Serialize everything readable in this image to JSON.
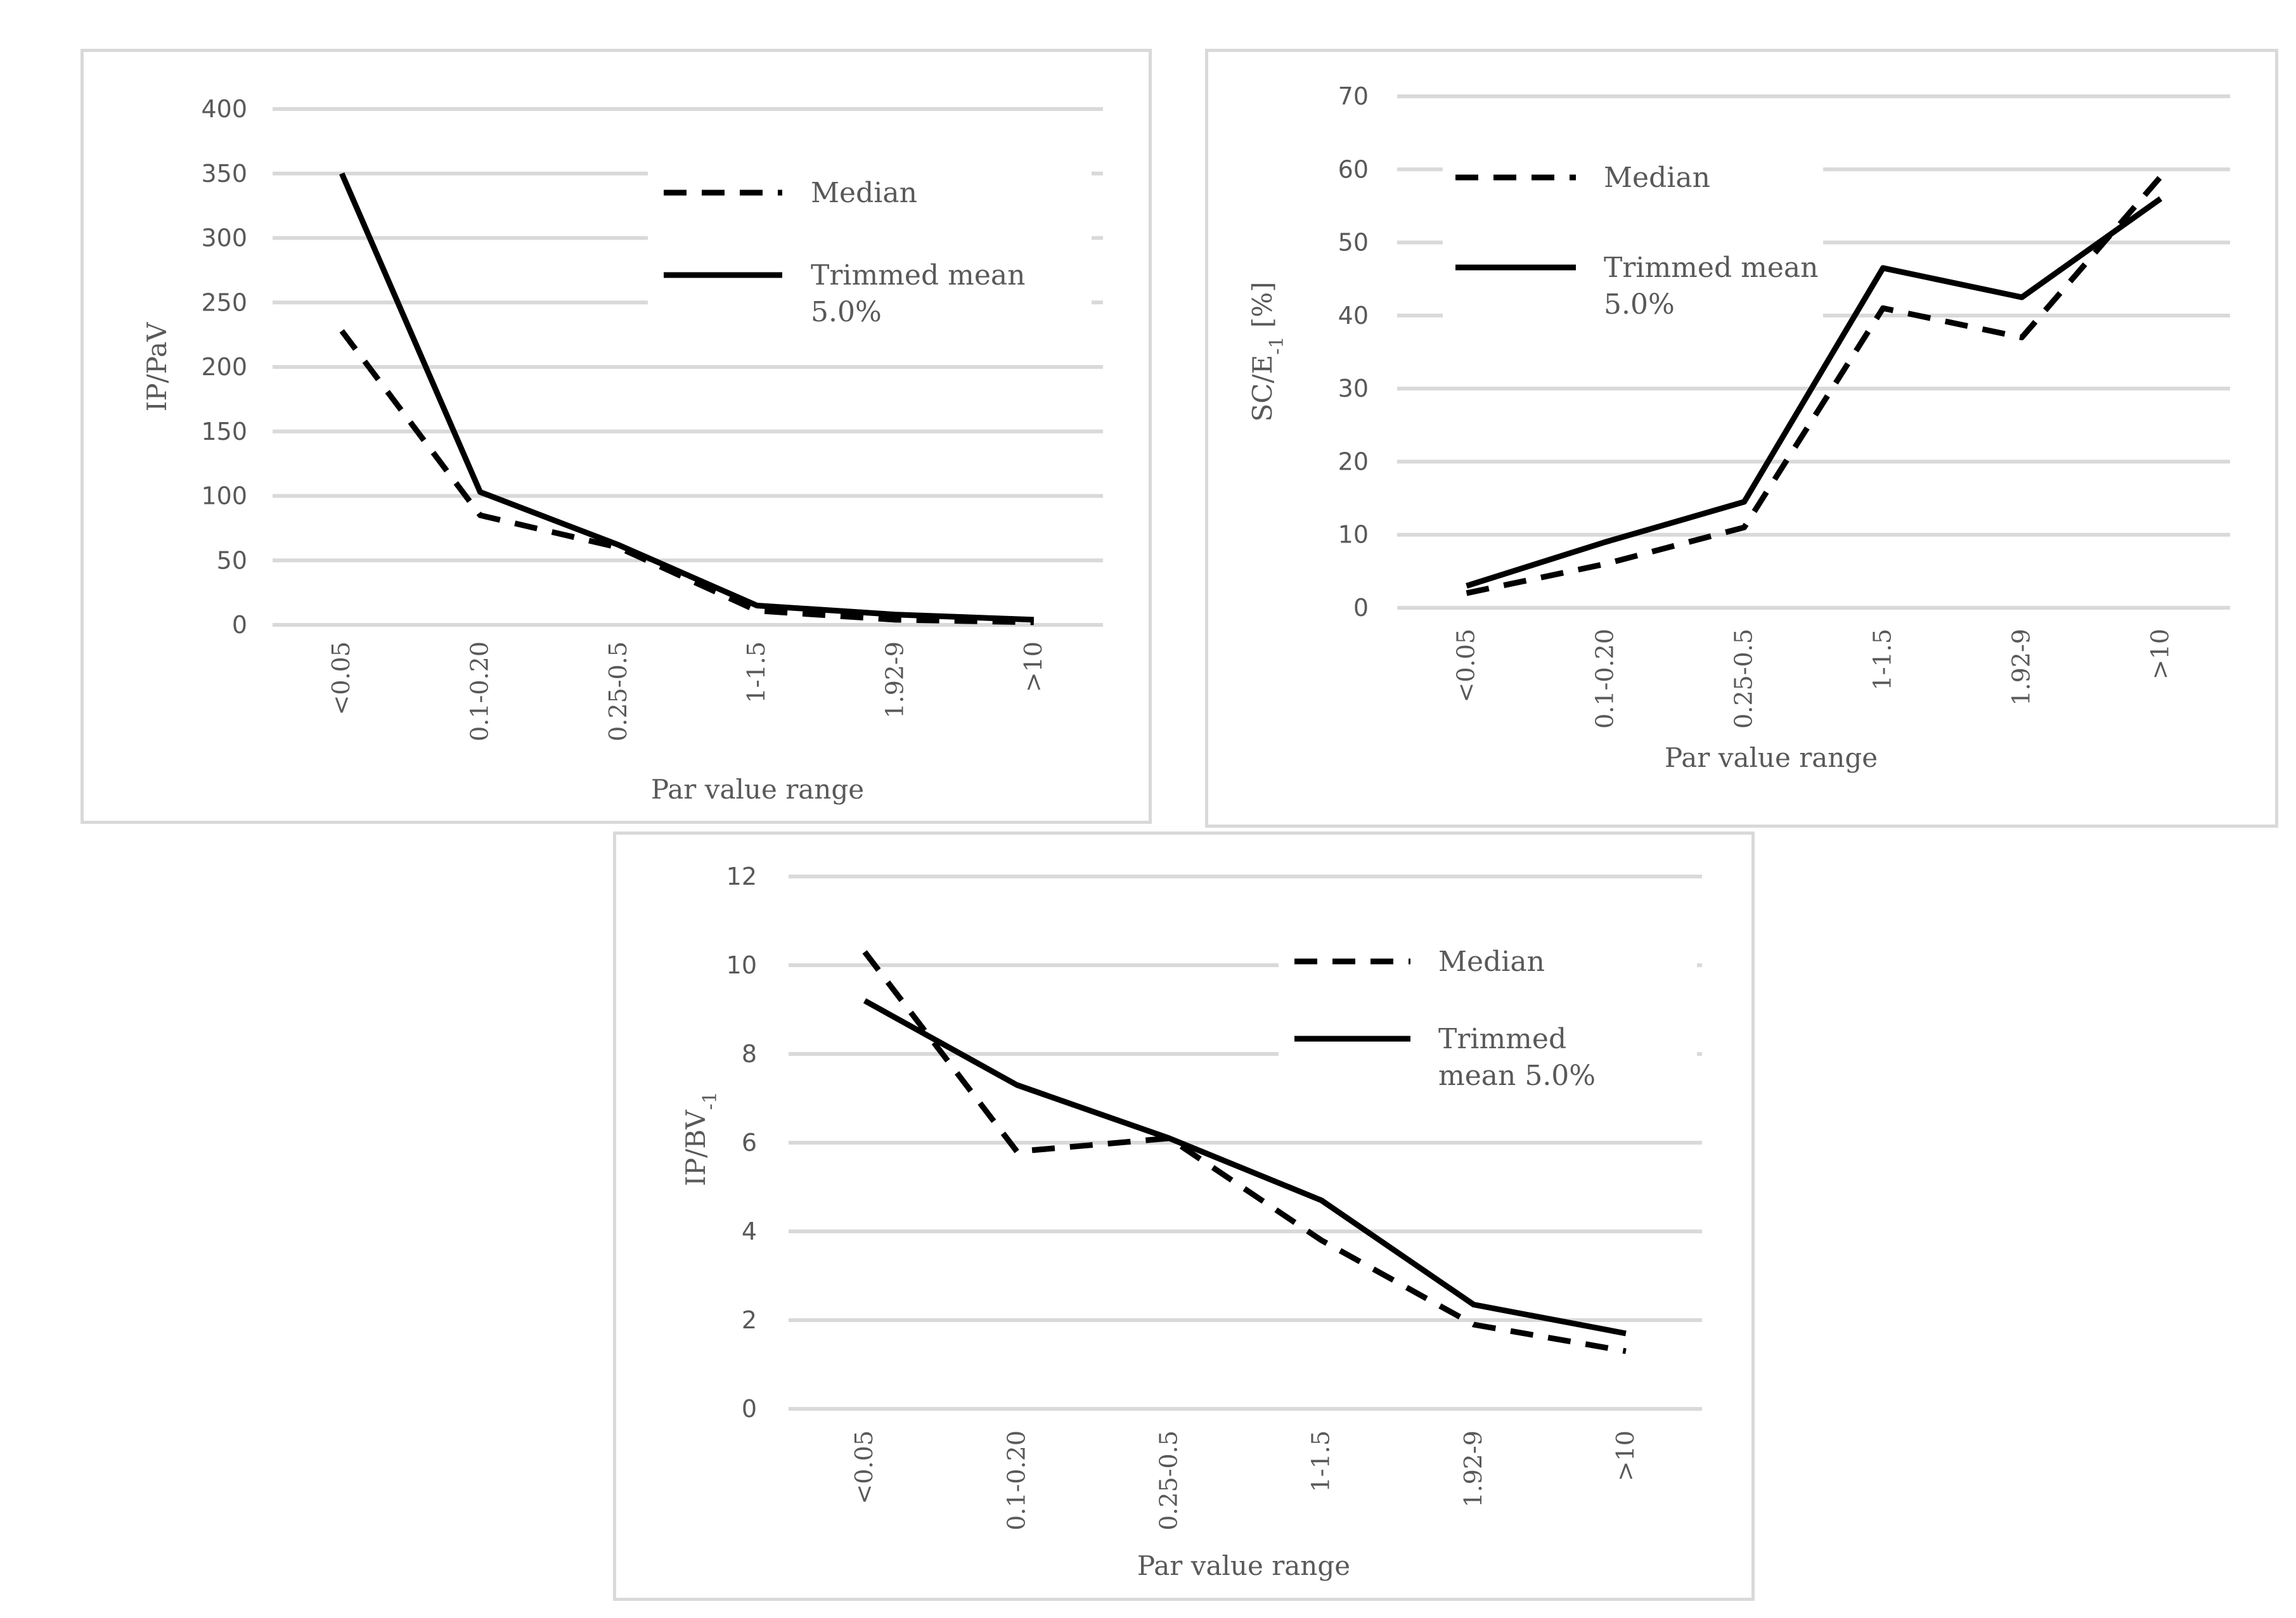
{
  "chart_data": [
    {
      "type": "line",
      "title": "",
      "xlabel": "Par value range",
      "ylabel": "IP/PaV",
      "ylim": [
        0,
        400
      ],
      "yticks": [
        0,
        50,
        100,
        150,
        200,
        250,
        300,
        350,
        400
      ],
      "categories": [
        "<0.05",
        "0.1-0.20",
        "0.25-0.5",
        "1-1.5",
        "1.92-9",
        ">10"
      ],
      "series": [
        {
          "name": "Median",
          "style": "dashed",
          "values": [
            228,
            85,
            60,
            11,
            4,
            2
          ]
        },
        {
          "name": "Trimmed mean 5.0%",
          "style": "solid",
          "values": [
            350,
            103,
            62,
            15,
            8,
            4
          ]
        }
      ],
      "legend_labels": [
        [
          "Median"
        ],
        [
          "Trimmed mean",
          "5.0%"
        ]
      ],
      "legend": "top-right"
    },
    {
      "type": "line",
      "title": "",
      "xlabel": "Par value range",
      "ylabel": "SC/E-1 [%]",
      "ylim": [
        0,
        70
      ],
      "yticks": [
        0,
        10,
        20,
        30,
        40,
        50,
        60,
        70
      ],
      "categories": [
        "<0.05",
        "0.1-0.20",
        "0.25-0.5",
        "1-1.5",
        "1.92-9",
        ">10"
      ],
      "series": [
        {
          "name": "Median",
          "style": "dashed",
          "values": [
            2,
            6,
            11,
            41,
            37,
            59
          ]
        },
        {
          "name": "Trimmed mean 5.0%",
          "style": "solid",
          "values": [
            3,
            9,
            14.5,
            46.5,
            42.5,
            56
          ]
        }
      ],
      "legend_labels": [
        [
          "Median"
        ],
        [
          "Trimmed mean",
          "5.0%"
        ]
      ],
      "legend": "top-left"
    },
    {
      "type": "line",
      "title": "",
      "xlabel": "Par value range",
      "ylabel": "IP/BV-1",
      "ylim": [
        0,
        12
      ],
      "yticks": [
        0,
        2,
        4,
        6,
        8,
        10,
        12
      ],
      "categories": [
        "<0.05",
        "0.1-0.20",
        "0.25-0.5",
        "1-1.5",
        "1.92-9",
        ">10"
      ],
      "series": [
        {
          "name": "Median",
          "style": "dashed",
          "values": [
            10.3,
            5.8,
            6.1,
            3.8,
            1.9,
            1.3
          ]
        },
        {
          "name": "Trimmed mean 5.0%",
          "style": "solid",
          "values": [
            9.2,
            7.3,
            6.1,
            4.7,
            2.35,
            1.7
          ]
        }
      ],
      "legend_labels": [
        [
          "Median"
        ],
        [
          "Trimmed",
          "mean 5.0%"
        ]
      ],
      "legend": "top-right"
    }
  ]
}
